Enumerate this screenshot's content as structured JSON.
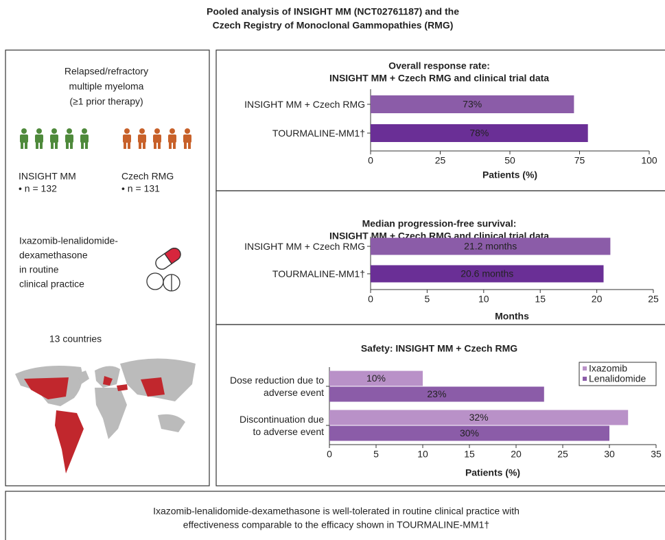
{
  "title": [
    "Pooled analysis of INSIGHT MM (NCT02761187) and the",
    "Czech Registry of Monoclonal Gammopathies (RMG)"
  ],
  "left_panel": {
    "population": [
      "Relapsed/refractory",
      "multiple myeloma",
      "(≥1 prior therapy)"
    ],
    "cohorts": [
      {
        "name": "INSIGHT MM",
        "n": "• n = 132",
        "color": "#4f8a3c"
      },
      {
        "name": "Czech RMG",
        "n": "• n = 131",
        "color": "#c8612a"
      }
    ],
    "treatment": [
      "Ixazomib-lenalidomide-",
      "dexamethasone",
      "in routine",
      "clinical practice"
    ],
    "countries": "13 countries"
  },
  "chart_data": [
    {
      "type": "bar",
      "orientation": "horizontal",
      "title": "Overall response rate:",
      "subtitle": "INSIGHT MM + Czech RMG and clinical trial data",
      "categories": [
        "INSIGHT MM + Czech RMG",
        "TOURMALINE-MM1†"
      ],
      "values": [
        73,
        78
      ],
      "value_labels": [
        "73%",
        "78%"
      ],
      "colors": [
        "#8b5ca8",
        "#6a2f96"
      ],
      "xlim": [
        0,
        100
      ],
      "xticks": [
        0,
        25,
        50,
        75,
        100
      ],
      "xlabel": "Patients (%)"
    },
    {
      "type": "bar",
      "orientation": "horizontal",
      "title": "Median progression-free survival:",
      "subtitle": "INSIGHT MM + Czech RMG and clinical trial data",
      "categories": [
        "INSIGHT MM + Czech RMG",
        "TOURMALINE-MM1†"
      ],
      "values": [
        21.2,
        20.6
      ],
      "value_labels": [
        "21.2 months",
        "20.6 months"
      ],
      "colors": [
        "#8b5ca8",
        "#6a2f96"
      ],
      "xlim": [
        0,
        25
      ],
      "xticks": [
        0,
        5,
        10,
        15,
        20,
        25
      ],
      "xlabel": "Months"
    },
    {
      "type": "bar",
      "orientation": "horizontal",
      "title": "Safety: INSIGHT MM + Czech RMG",
      "categories": [
        "Dose reduction due to adverse event",
        "Discontinuation due to adverse event"
      ],
      "series": [
        {
          "name": "Ixazomib",
          "color": "#b991c8",
          "values": [
            10,
            32
          ],
          "value_labels": [
            "10%",
            "32%"
          ]
        },
        {
          "name": "Lenalidomide",
          "color": "#8b5ca8",
          "values": [
            23,
            30
          ],
          "value_labels": [
            "23%",
            "30%"
          ]
        }
      ],
      "xlim": [
        0,
        35
      ],
      "xticks": [
        0,
        5,
        10,
        15,
        20,
        25,
        30,
        35
      ],
      "xlabel": "Patients (%)",
      "legend": "upper right"
    }
  ],
  "footer": [
    "Ixazomib-lenalidomide-dexamethasone is well-tolerated in routine clinical practice with",
    "effectiveness comparable to the efficacy shown in TOURMALINE-MM1†"
  ]
}
